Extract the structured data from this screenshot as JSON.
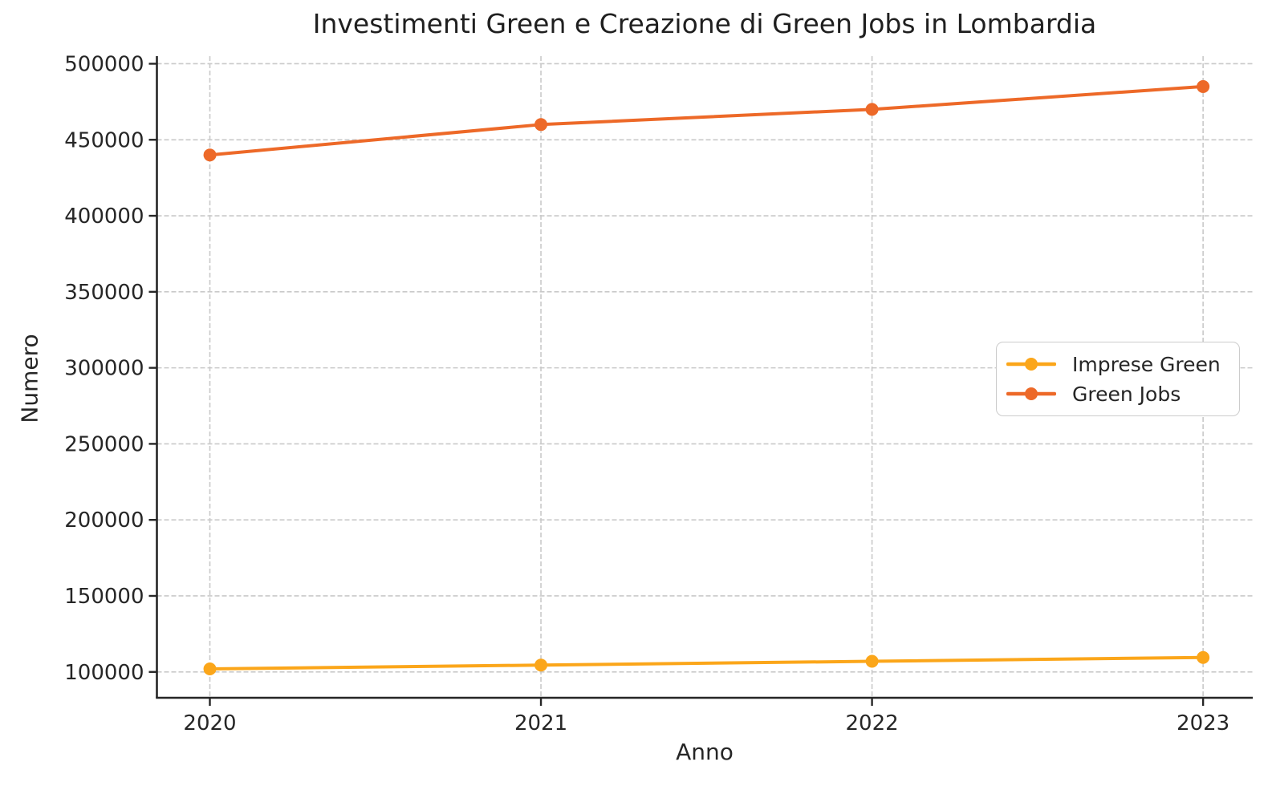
{
  "chart_data": {
    "type": "line",
    "title": "Investimenti Green e Creazione di Green Jobs in Lombardia",
    "xlabel": "Anno",
    "ylabel": "Numero",
    "x": [
      2020,
      2021,
      2022,
      2023
    ],
    "x_tick_labels": [
      "2020",
      "2021",
      "2022",
      "2023"
    ],
    "yticks": [
      100000,
      150000,
      200000,
      250000,
      300000,
      350000,
      400000,
      450000,
      500000
    ],
    "ytick_labels": [
      "100000",
      "150000",
      "200000",
      "250000",
      "300000",
      "350000",
      "400000",
      "450000",
      "500000"
    ],
    "xlim": [
      2019.84,
      2023.15
    ],
    "ylim": [
      83000,
      505000
    ],
    "grid": true,
    "grid_style": "dashed",
    "grid_color": "#c9c9c9",
    "legend_position": "center right",
    "series": [
      {
        "name": "Imprese Green",
        "color": "#FBA61A",
        "values": [
          102000,
          104500,
          107000,
          109500
        ]
      },
      {
        "name": "Green Jobs",
        "color": "#ED6928",
        "values": [
          440000,
          460000,
          470000,
          485000
        ]
      }
    ]
  },
  "legend": {
    "entries": [
      "Imprese Green",
      "Green Jobs"
    ]
  }
}
